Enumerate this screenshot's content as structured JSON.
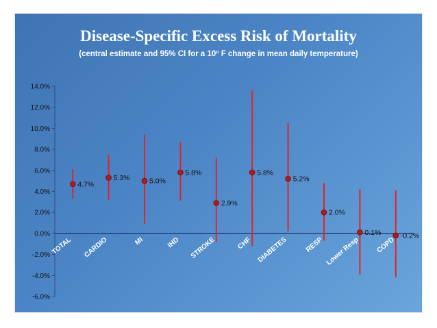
{
  "chart_data": {
    "type": "scatter",
    "title": "Disease-Specific Excess Risk of Mortality",
    "subtitle": "(central estimate and 95% CI for a 10º F change in mean daily temperature)",
    "xlabel": "",
    "ylabel": "",
    "ylim": [
      -6,
      14
    ],
    "yticks": [
      "14.0%",
      "12.0%",
      "10.0%",
      "8.0%",
      "6.0%",
      "4.0%",
      "2.0%",
      "0.0%",
      "-2.0%",
      "-4.0%",
      "-6.0%"
    ],
    "categories": [
      "TOTAL",
      "CARDIO",
      "MI",
      "IHD",
      "STROKE",
      "CHF",
      "DIABETES",
      "RESP",
      "Lower Resp",
      "COPD"
    ],
    "estimates": [
      4.7,
      5.3,
      5.0,
      5.8,
      2.9,
      5.8,
      5.2,
      2.0,
      0.1,
      -0.2
    ],
    "ci_lower": [
      3.3,
      3.2,
      0.9,
      3.1,
      -0.8,
      -1.2,
      0.2,
      -0.7,
      -3.9,
      -4.2
    ],
    "ci_upper": [
      6.1,
      7.5,
      9.4,
      8.7,
      7.2,
      13.6,
      10.5,
      4.8,
      4.2,
      4.1
    ],
    "data_labels": [
      "4.7%",
      "5.3%",
      "5.0%",
      "5.8%",
      "2.9%",
      "5.8%",
      "5.2%",
      "2.0%",
      "0.1%",
      "-0.2%"
    ],
    "colors": {
      "ci_line": "#e0242a",
      "marker_fill": "#b5191c",
      "marker_edge": "#7a0f10",
      "baseline": "#1f2a6e",
      "text": "#111111",
      "category_text": "#ffffff"
    }
  }
}
